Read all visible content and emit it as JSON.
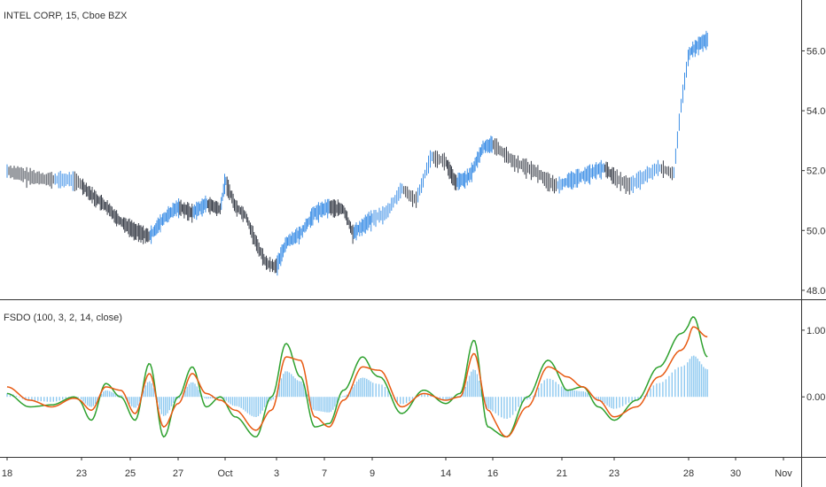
{
  "header": {
    "symbol_title": "INTEL CORP, 15, Cboe BZX"
  },
  "indicator": {
    "title": "FSDO (100, 3, 2, 14, close)"
  },
  "colors": {
    "candle_up": "#3d8fe6",
    "candle_down": "#3a3f4a",
    "fast_line": "#2ea12e",
    "slow_line": "#e85a12",
    "histogram": "#8ec9f0",
    "axis_line": "#333333",
    "text": "#333333"
  },
  "price_axis_labels": [
    "56.00",
    "54.00",
    "52.00",
    "50.00",
    "48.00"
  ],
  "osc_axis_labels": [
    "1.00",
    "0.00"
  ],
  "time_axis_labels": [
    "18",
    "23",
    "25",
    "27",
    "Oct",
    "3",
    "7",
    "9",
    "14",
    "16",
    "21",
    "23",
    "28",
    "30",
    "Nov"
  ],
  "chart_data": [
    {
      "type": "line",
      "title": "INTEL CORP, 15, Cboe BZX",
      "description_series": "15-minute candlesticks (approximate path)",
      "y_ticks": [
        56.0,
        54.0,
        52.0,
        50.0,
        48.0
      ],
      "ylim": [
        47.7,
        57.7
      ],
      "x_categories": [
        "18",
        "23",
        "25",
        "27",
        "Oct",
        "3",
        "7",
        "9",
        "14",
        "16",
        "21",
        "23",
        "28",
        "30",
        "Nov"
      ],
      "price_points": [
        [
          0,
          52.0
        ],
        [
          0.3,
          51.8
        ],
        [
          0.6,
          51.7
        ],
        [
          0.9,
          51.7
        ],
        [
          1.2,
          51.2
        ],
        [
          1.5,
          50.8
        ],
        [
          1.8,
          50.3
        ],
        [
          2.1,
          50.0
        ],
        [
          2.4,
          49.8
        ],
        [
          2.7,
          50.4
        ],
        [
          3.0,
          50.8
        ],
        [
          3.3,
          50.6
        ],
        [
          3.6,
          50.9
        ],
        [
          3.9,
          50.7
        ],
        [
          4.0,
          51.7
        ],
        [
          4.2,
          50.8
        ],
        [
          4.4,
          50.5
        ],
        [
          4.6,
          49.6
        ],
        [
          4.8,
          48.9
        ],
        [
          5.0,
          48.8
        ],
        [
          5.2,
          49.6
        ],
        [
          5.5,
          49.9
        ],
        [
          5.8,
          50.6
        ],
        [
          6.1,
          50.8
        ],
        [
          6.4,
          50.7
        ],
        [
          6.6,
          49.9
        ],
        [
          6.9,
          50.3
        ],
        [
          7.2,
          50.6
        ],
        [
          7.4,
          51.4
        ],
        [
          7.6,
          51.0
        ],
        [
          7.8,
          52.5
        ],
        [
          8.0,
          52.3
        ],
        [
          8.2,
          51.6
        ],
        [
          8.5,
          51.8
        ],
        [
          8.8,
          52.8
        ],
        [
          9.0,
          52.9
        ],
        [
          9.3,
          52.3
        ],
        [
          9.6,
          52.0
        ],
        [
          9.9,
          51.5
        ],
        [
          10.2,
          51.7
        ],
        [
          10.5,
          51.9
        ],
        [
          10.8,
          52.1
        ],
        [
          11.0,
          51.8
        ],
        [
          11.2,
          51.5
        ],
        [
          11.4,
          51.8
        ],
        [
          11.6,
          52.1
        ],
        [
          11.8,
          51.9
        ],
        [
          11.9,
          54.2
        ],
        [
          12.0,
          55.9
        ],
        [
          12.2,
          56.2
        ],
        [
          12.4,
          56.4
        ]
      ]
    },
    {
      "type": "line",
      "title": "FSDO (100, 3, 2, 14, close)",
      "y_ticks": [
        1.0,
        0.0
      ],
      "ylim": [
        -0.9,
        1.45
      ],
      "series": [
        {
          "name": "fast",
          "points": [
            [
              0,
              0.05
            ],
            [
              0.3,
              -0.15
            ],
            [
              0.6,
              -0.12
            ],
            [
              0.9,
              0.0
            ],
            [
              1.2,
              -0.35
            ],
            [
              1.5,
              0.2
            ],
            [
              1.8,
              0.0
            ],
            [
              2.1,
              -0.35
            ],
            [
              2.4,
              0.5
            ],
            [
              2.7,
              -0.6
            ],
            [
              3.0,
              0.0
            ],
            [
              3.3,
              0.45
            ],
            [
              3.6,
              -0.15
            ],
            [
              3.9,
              0.0
            ],
            [
              4.2,
              -0.3
            ],
            [
              4.6,
              -0.6
            ],
            [
              4.9,
              0.0
            ],
            [
              5.2,
              0.8
            ],
            [
              5.5,
              0.3
            ],
            [
              5.8,
              -0.45
            ],
            [
              6.1,
              -0.4
            ],
            [
              6.4,
              0.1
            ],
            [
              6.8,
              0.6
            ],
            [
              7.1,
              0.3
            ],
            [
              7.4,
              -0.25
            ],
            [
              7.7,
              0.1
            ],
            [
              8.0,
              -0.1
            ],
            [
              8.3,
              0.05
            ],
            [
              8.6,
              0.85
            ],
            [
              8.9,
              -0.45
            ],
            [
              9.2,
              -0.6
            ],
            [
              9.5,
              0.0
            ],
            [
              9.8,
              0.55
            ],
            [
              10.1,
              0.1
            ],
            [
              10.4,
              0.15
            ],
            [
              10.7,
              -0.15
            ],
            [
              11.0,
              -0.35
            ],
            [
              11.3,
              -0.05
            ],
            [
              11.6,
              0.45
            ],
            [
              11.9,
              0.95
            ],
            [
              12.1,
              1.2
            ],
            [
              12.4,
              0.6
            ]
          ]
        },
        {
          "name": "slow",
          "points": [
            [
              0,
              0.15
            ],
            [
              0.3,
              -0.05
            ],
            [
              0.6,
              -0.15
            ],
            [
              0.9,
              -0.02
            ],
            [
              1.2,
              -0.2
            ],
            [
              1.5,
              0.15
            ],
            [
              1.8,
              0.1
            ],
            [
              2.1,
              -0.25
            ],
            [
              2.4,
              0.35
            ],
            [
              2.7,
              -0.45
            ],
            [
              3.0,
              -0.1
            ],
            [
              3.3,
              0.35
            ],
            [
              3.6,
              0.05
            ],
            [
              3.9,
              -0.05
            ],
            [
              4.2,
              -0.2
            ],
            [
              4.6,
              -0.5
            ],
            [
              4.9,
              -0.2
            ],
            [
              5.2,
              0.6
            ],
            [
              5.5,
              0.55
            ],
            [
              5.8,
              -0.3
            ],
            [
              6.1,
              -0.45
            ],
            [
              6.4,
              -0.05
            ],
            [
              6.8,
              0.45
            ],
            [
              7.1,
              0.4
            ],
            [
              7.4,
              -0.15
            ],
            [
              7.7,
              0.05
            ],
            [
              8.0,
              -0.05
            ],
            [
              8.3,
              0.0
            ],
            [
              8.6,
              0.65
            ],
            [
              8.9,
              -0.2
            ],
            [
              9.2,
              -0.6
            ],
            [
              9.5,
              -0.15
            ],
            [
              9.8,
              0.45
            ],
            [
              10.1,
              0.3
            ],
            [
              10.4,
              0.15
            ],
            [
              10.7,
              -0.05
            ],
            [
              11.0,
              -0.3
            ],
            [
              11.3,
              -0.15
            ],
            [
              11.6,
              0.3
            ],
            [
              11.9,
              0.7
            ],
            [
              12.1,
              1.05
            ],
            [
              12.4,
              0.9
            ]
          ]
        }
      ]
    }
  ]
}
